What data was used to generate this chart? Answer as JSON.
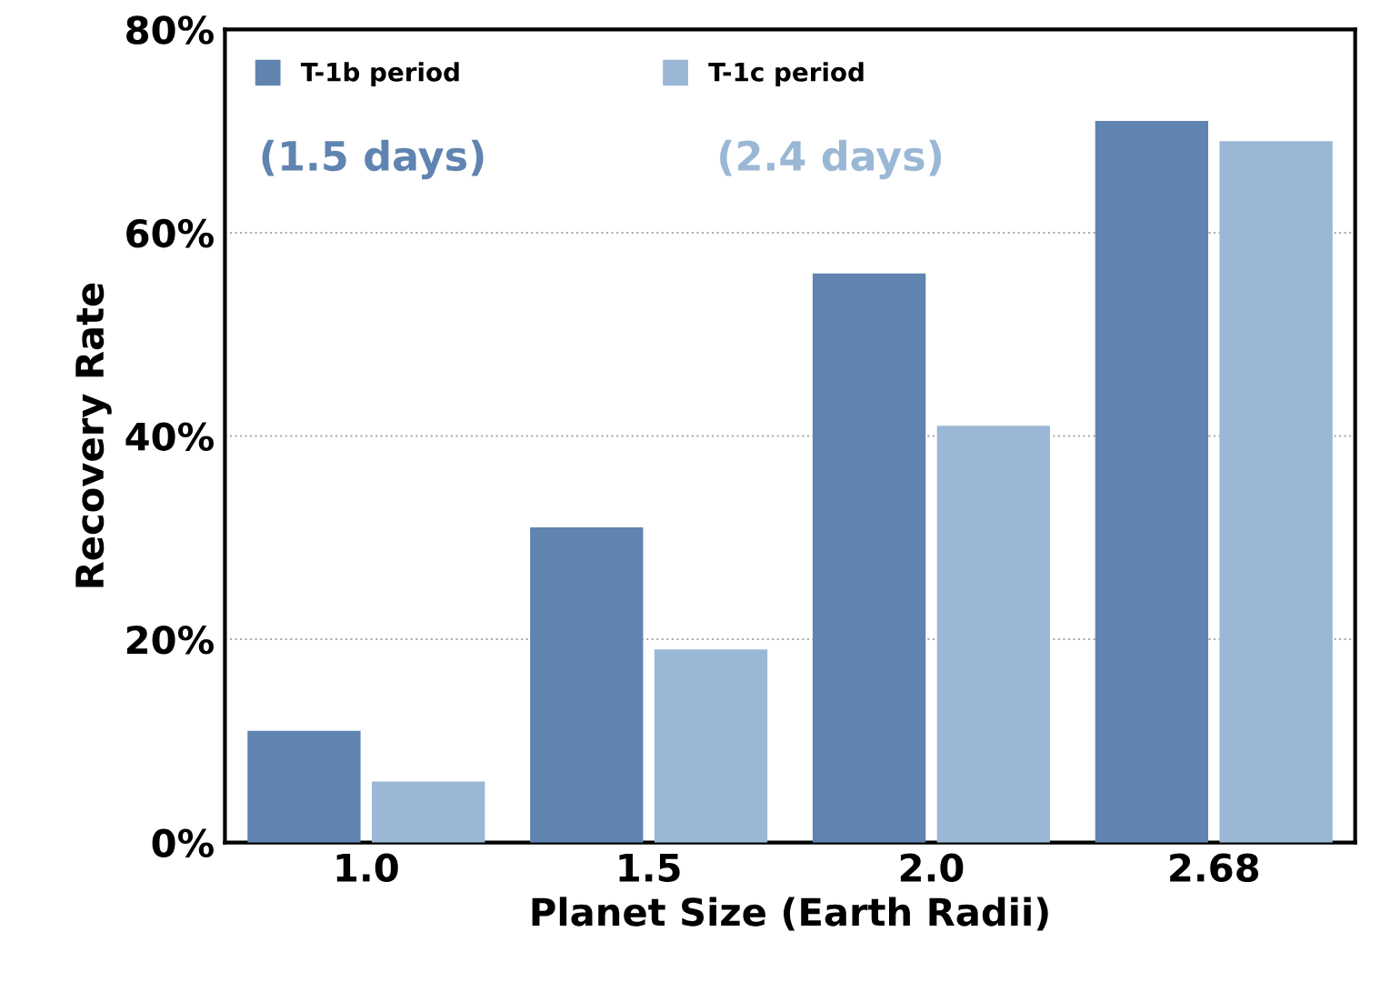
{
  "chart_data": {
    "type": "bar",
    "xlabel": "Planet Size (Earth Radii)",
    "ylabel": "Recovery Rate",
    "categories": [
      "1.0",
      "1.5",
      "2.0",
      "2.68"
    ],
    "series": [
      {
        "name": "T-1b period",
        "color": "#6084b0",
        "values": [
          11,
          31,
          56,
          71
        ]
      },
      {
        "name": "T-1c period",
        "color": "#9ab8d5",
        "values": [
          6,
          19,
          41,
          69
        ]
      }
    ],
    "annotations": [
      "(1.5 days)",
      "(2.4 days)"
    ],
    "ylim": [
      0,
      80
    ],
    "yticks": [
      {
        "value": 0,
        "label": "0%"
      },
      {
        "value": 20,
        "label": "20%"
      },
      {
        "value": 40,
        "label": "40%"
      },
      {
        "value": 60,
        "label": "60%"
      },
      {
        "value": 80,
        "label": "80%"
      }
    ],
    "grid": "y",
    "legend": "top left"
  }
}
